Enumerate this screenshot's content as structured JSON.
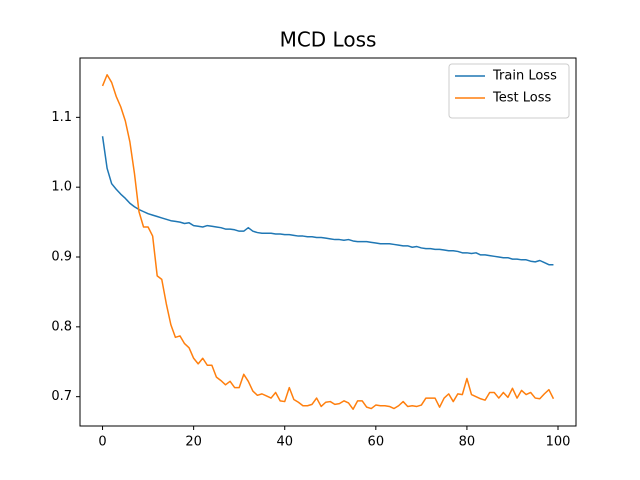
{
  "chart_data": {
    "type": "line",
    "title": "MCD Loss",
    "x": [
      0,
      1,
      2,
      3,
      4,
      5,
      6,
      7,
      8,
      9,
      10,
      11,
      12,
      13,
      14,
      15,
      16,
      17,
      18,
      19,
      20,
      21,
      22,
      23,
      24,
      25,
      26,
      27,
      28,
      29,
      30,
      31,
      32,
      33,
      34,
      35,
      36,
      37,
      38,
      39,
      40,
      41,
      42,
      43,
      44,
      45,
      46,
      47,
      48,
      49,
      50,
      51,
      52,
      53,
      54,
      55,
      56,
      57,
      58,
      59,
      60,
      61,
      62,
      63,
      64,
      65,
      66,
      67,
      68,
      69,
      70,
      71,
      72,
      73,
      74,
      75,
      76,
      77,
      78,
      79,
      80,
      81,
      82,
      83,
      84,
      85,
      86,
      87,
      88,
      89,
      90,
      91,
      92,
      93,
      94,
      95,
      96,
      97,
      98,
      99
    ],
    "series": [
      {
        "name": "Train Loss",
        "color": "#1f77b4",
        "values": [
          1.073,
          1.027,
          1.005,
          0.997,
          0.99,
          0.984,
          0.977,
          0.972,
          0.968,
          0.965,
          0.962,
          0.96,
          0.958,
          0.956,
          0.954,
          0.952,
          0.951,
          0.95,
          0.948,
          0.949,
          0.945,
          0.944,
          0.943,
          0.945,
          0.944,
          0.943,
          0.942,
          0.94,
          0.94,
          0.939,
          0.937,
          0.937,
          0.942,
          0.937,
          0.935,
          0.934,
          0.934,
          0.934,
          0.933,
          0.933,
          0.932,
          0.932,
          0.931,
          0.93,
          0.93,
          0.929,
          0.929,
          0.928,
          0.928,
          0.927,
          0.926,
          0.925,
          0.925,
          0.924,
          0.925,
          0.923,
          0.922,
          0.922,
          0.922,
          0.921,
          0.92,
          0.919,
          0.919,
          0.919,
          0.918,
          0.917,
          0.916,
          0.916,
          0.914,
          0.915,
          0.913,
          0.912,
          0.912,
          0.911,
          0.911,
          0.91,
          0.909,
          0.909,
          0.908,
          0.906,
          0.906,
          0.905,
          0.906,
          0.903,
          0.903,
          0.902,
          0.901,
          0.9,
          0.899,
          0.899,
          0.897,
          0.897,
          0.896,
          0.896,
          0.894,
          0.893,
          0.895,
          0.892,
          0.889,
          0.889
        ]
      },
      {
        "name": "Test Loss",
        "color": "#ff7f0e",
        "values": [
          1.145,
          1.161,
          1.15,
          1.13,
          1.115,
          1.095,
          1.065,
          1.02,
          0.965,
          0.943,
          0.943,
          0.93,
          0.873,
          0.868,
          0.833,
          0.803,
          0.785,
          0.787,
          0.776,
          0.77,
          0.755,
          0.747,
          0.755,
          0.745,
          0.745,
          0.728,
          0.723,
          0.717,
          0.722,
          0.713,
          0.713,
          0.732,
          0.722,
          0.708,
          0.702,
          0.704,
          0.701,
          0.698,
          0.706,
          0.694,
          0.693,
          0.713,
          0.696,
          0.692,
          0.687,
          0.687,
          0.689,
          0.698,
          0.686,
          0.692,
          0.693,
          0.689,
          0.69,
          0.694,
          0.691,
          0.682,
          0.694,
          0.694,
          0.685,
          0.683,
          0.688,
          0.687,
          0.687,
          0.686,
          0.683,
          0.687,
          0.693,
          0.686,
          0.687,
          0.686,
          0.688,
          0.698,
          0.698,
          0.698,
          0.685,
          0.698,
          0.704,
          0.693,
          0.704,
          0.703,
          0.726,
          0.703,
          0.7,
          0.697,
          0.695,
          0.706,
          0.706,
          0.698,
          0.706,
          0.699,
          0.712,
          0.698,
          0.709,
          0.703,
          0.706,
          0.698,
          0.697,
          0.704,
          0.71,
          0.697
        ]
      }
    ],
    "xlim": [
      -4.95,
      103.95
    ],
    "xticks": [
      0,
      20,
      40,
      60,
      80,
      100
    ],
    "ylim": [
      0.658,
      1.185
    ],
    "yticks": [
      0.7,
      0.8,
      0.9,
      {
        "value": 1,
        "label": "1.0"
      },
      1.1
    ],
    "legend": "upper right",
    "grid": false
  }
}
